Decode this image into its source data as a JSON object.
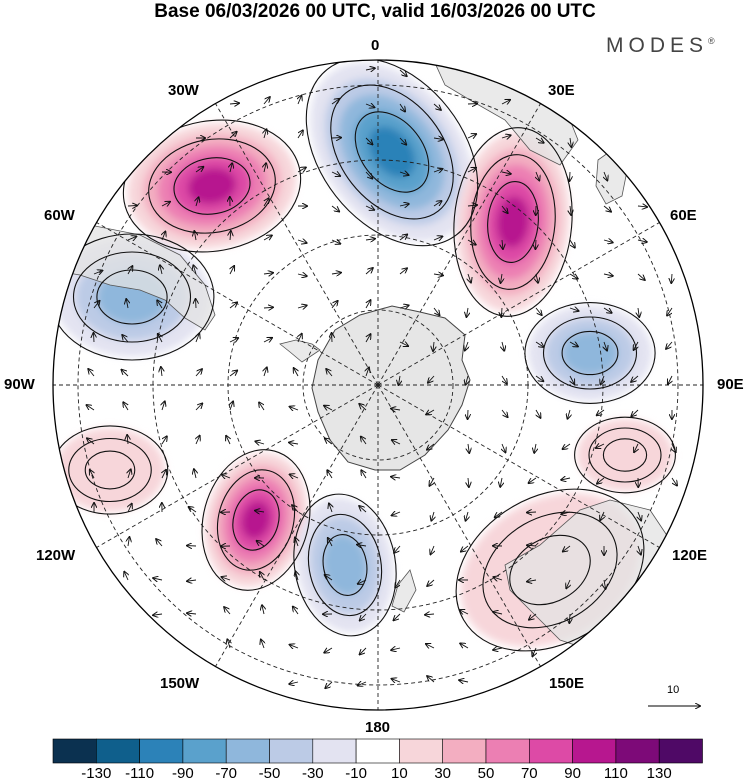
{
  "title": "Base 06/03/2026 00 UTC, valid 16/03/2026 00 UTC",
  "brand": "MODES",
  "brand_mark": "®",
  "longitude_labels": {
    "n": "0",
    "ne30": "30E",
    "ne60": "60E",
    "e": "90E",
    "se120": "120E",
    "se150": "150E",
    "s": "180",
    "sw150": "150W",
    "sw120": "120W",
    "w": "90W",
    "nw60": "60W",
    "nw30": "30W"
  },
  "vector_reference": "10",
  "colorbar": {
    "labels": [
      "-130",
      "-110",
      "-90",
      "-70",
      "-50",
      "-30",
      "-10",
      "10",
      "30",
      "50",
      "70",
      "90",
      "110",
      "130"
    ],
    "colors": [
      "#0b3150",
      "#0f5f8c",
      "#2c82b8",
      "#5aa1cc",
      "#8fb7dc",
      "#bccbe6",
      "#e3e3f1",
      "#ffffff",
      "#f7d6da",
      "#f3aec1",
      "#ec7fb3",
      "#dd4aa6",
      "#b7178f",
      "#7d0a78",
      "#4f0966"
    ]
  },
  "anomaly_centers": [
    {
      "name": "positive-anomaly-30w",
      "value": 110
    },
    {
      "name": "negative-anomaly-0",
      "value": -110
    },
    {
      "name": "positive-anomaly-30e",
      "value": 110
    },
    {
      "name": "negative-anomaly-60w",
      "value": -70
    },
    {
      "name": "negative-anomaly-90e",
      "value": -70
    },
    {
      "name": "positive-anomaly-120w",
      "value": 110
    },
    {
      "name": "negative-anomaly-150w",
      "value": -70
    },
    {
      "name": "positive-anomaly-150e",
      "value": 30
    },
    {
      "name": "positive-anomaly-105w",
      "value": 30
    },
    {
      "name": "positive-anomaly-105e",
      "value": 30
    }
  ]
}
